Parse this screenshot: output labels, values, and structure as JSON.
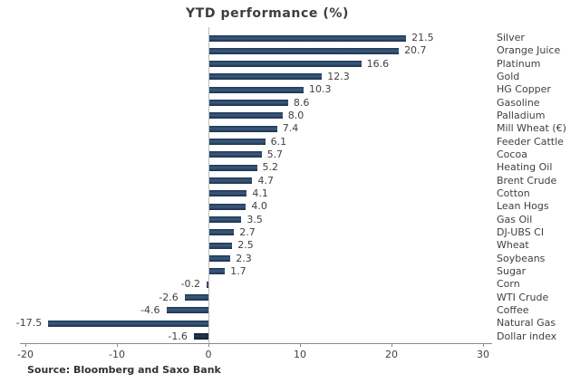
{
  "chart_data": {
    "type": "bar",
    "orientation": "horizontal",
    "title": "YTD performance (%)",
    "categories": [
      "Silver",
      "Orange Juice",
      "Platinum",
      "Gold",
      "HG Copper",
      "Gasoline",
      "Palladium",
      "Mill Wheat (€)",
      "Feeder Cattle",
      "Cocoa",
      "Heating Oil",
      "Brent Crude",
      "Cotton",
      "Lean Hogs",
      "Gas Oil",
      "DJ-UBS CI",
      "Wheat",
      "Soybeans",
      "Sugar",
      "Corn",
      "WTI Crude",
      "Coffee",
      "Natural Gas",
      "Dollar index"
    ],
    "values": [
      21.5,
      20.7,
      16.6,
      12.3,
      10.3,
      8.6,
      8.0,
      7.4,
      6.1,
      5.7,
      5.2,
      4.7,
      4.1,
      4.0,
      3.5,
      2.7,
      2.5,
      2.3,
      1.7,
      -0.2,
      -2.6,
      -4.6,
      -17.5,
      -1.6
    ],
    "xticks": [
      -20,
      -10,
      0,
      10,
      20,
      30
    ],
    "xlim": [
      -20,
      30
    ],
    "xlabel": "",
    "ylabel": "",
    "legend": "none",
    "grid": "zero-line-only",
    "source": "Source: Bloomberg and Saxo Bank",
    "colors": {
      "bar_top": "#1d3854",
      "bar_mid": "#3d5a7e",
      "bar_bottom": "#1a3049",
      "highlight_bar_top": "#12202f",
      "highlight_bar_mid": "#243a52",
      "highlight_bar_bottom": "#0f1c2b",
      "highlight_category": "Dollar index",
      "text": "#404040",
      "axis": "#8c8c8c",
      "zero_line": "#bdbdbd",
      "background": "#ffffff"
    }
  }
}
